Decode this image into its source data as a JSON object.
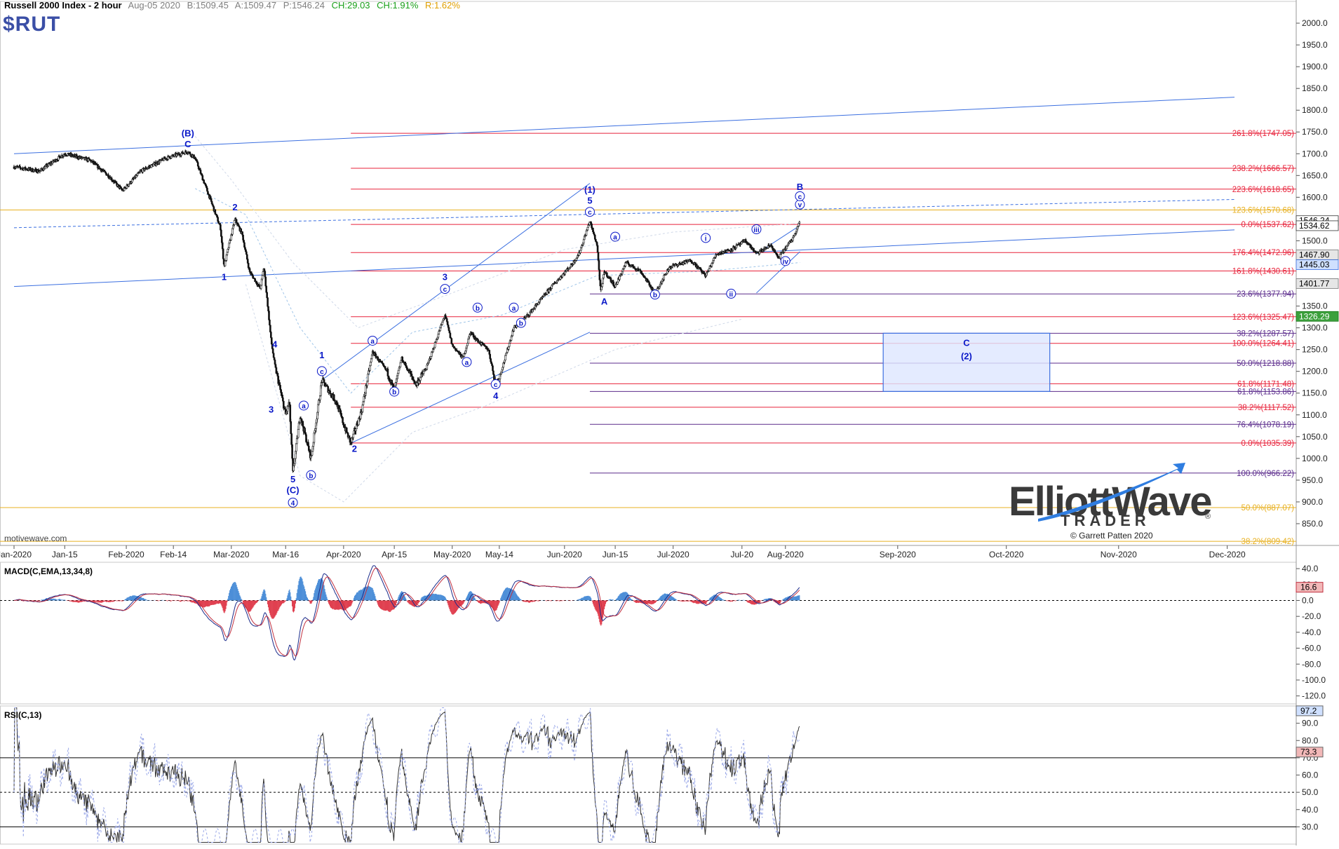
{
  "header": {
    "title": "Russell 2000 Index - 2 hour",
    "date": "Aug-05 2020",
    "bid": "B:1509.45",
    "ask": "A:1509.47",
    "price": "P:1546.24",
    "change": "CH:29.03",
    "change_pct": "CH:1.91%",
    "range": "R:1.62%",
    "symbol": "$RUT"
  },
  "colors": {
    "background": "#ffffff",
    "fib_red": "#e8223a",
    "fib_purple": "#5b2b8c",
    "fib_orange": "#e8b020",
    "trend_blue": "#3b6fe0",
    "wave_label": "#0a18c8",
    "candle": "#111111",
    "macd_up": "#4d8fd8",
    "macd_down": "#e04050",
    "rsi_fill": "#c9a8a8",
    "target_box": "#dde6ff"
  },
  "chart_data": [
    {
      "type": "candlestick",
      "name": "price",
      "ylim": [
        800,
        2050
      ],
      "y_ticks": [
        850,
        900,
        950,
        1000,
        1050,
        1100,
        1150,
        1200,
        1250,
        1300,
        1350,
        1400,
        1450,
        1500,
        1550,
        1600,
        1650,
        1700,
        1750,
        1800,
        1850,
        1900,
        1950,
        2000
      ],
      "x_ticks": [
        "Jan-2020",
        "Jan-15",
        "Feb-2020",
        "Feb-14",
        "Mar-2020",
        "Mar-16",
        "Apr-2020",
        "Apr-15",
        "May-2020",
        "May-14",
        "Jun-2020",
        "Jun-15",
        "Jul-2020",
        "Jul-20",
        "Aug-2020",
        "Sep-2020",
        "Oct-2020",
        "Nov-2020",
        "Dec-2020"
      ],
      "x_tick_dates": [
        "2020-01-01",
        "2020-01-15",
        "2020-02-01",
        "2020-02-14",
        "2020-03-01",
        "2020-03-16",
        "2020-04-01",
        "2020-04-15",
        "2020-05-01",
        "2020-05-14",
        "2020-06-01",
        "2020-06-15",
        "2020-07-01",
        "2020-07-20",
        "2020-08-01",
        "2020-09-01",
        "2020-10-01",
        "2020-11-01",
        "2020-12-01"
      ],
      "price_path": [
        [
          "2020-01-01",
          1670
        ],
        [
          "2020-01-08",
          1660
        ],
        [
          "2020-01-15",
          1700
        ],
        [
          "2020-01-22",
          1685
        ],
        [
          "2020-01-27",
          1650
        ],
        [
          "2020-01-31",
          1615
        ],
        [
          "2020-02-05",
          1660
        ],
        [
          "2020-02-12",
          1690
        ],
        [
          "2020-02-18",
          1705
        ],
        [
          "2020-02-20",
          1690
        ],
        [
          "2020-02-24",
          1600
        ],
        [
          "2020-02-27",
          1530
        ],
        [
          "2020-02-28",
          1440
        ],
        [
          "2020-03-02",
          1550
        ],
        [
          "2020-03-04",
          1515
        ],
        [
          "2020-03-06",
          1430
        ],
        [
          "2020-03-09",
          1390
        ],
        [
          "2020-03-10",
          1440
        ],
        [
          "2020-03-12",
          1270
        ],
        [
          "2020-03-13",
          1215
        ],
        [
          "2020-03-16",
          1100
        ],
        [
          "2020-03-17",
          1130
        ],
        [
          "2020-03-18",
          966
        ],
        [
          "2020-03-20",
          1100
        ],
        [
          "2020-03-23",
          1000
        ],
        [
          "2020-03-24",
          1060
        ],
        [
          "2020-03-26",
          1180
        ],
        [
          "2020-03-30",
          1130
        ],
        [
          "2020-04-01",
          1078
        ],
        [
          "2020-04-03",
          1035
        ],
        [
          "2020-04-06",
          1110
        ],
        [
          "2020-04-09",
          1245
        ],
        [
          "2020-04-13",
          1200
        ],
        [
          "2020-04-15",
          1155
        ],
        [
          "2020-04-17",
          1230
        ],
        [
          "2020-04-21",
          1170
        ],
        [
          "2020-04-24",
          1210
        ],
        [
          "2020-04-29",
          1330
        ],
        [
          "2020-05-01",
          1260
        ],
        [
          "2020-05-04",
          1230
        ],
        [
          "2020-05-06",
          1290
        ],
        [
          "2020-05-08",
          1270
        ],
        [
          "2020-05-11",
          1250
        ],
        [
          "2020-05-13",
          1170
        ],
        [
          "2020-05-14",
          1185
        ],
        [
          "2020-05-18",
          1300
        ],
        [
          "2020-05-22",
          1330
        ],
        [
          "2020-05-26",
          1370
        ],
        [
          "2020-05-29",
          1400
        ],
        [
          "2020-06-03",
          1445
        ],
        [
          "2020-06-05",
          1470
        ],
        [
          "2020-06-08",
          1545
        ],
        [
          "2020-06-10",
          1490
        ],
        [
          "2020-06-11",
          1380
        ],
        [
          "2020-06-12",
          1430
        ],
        [
          "2020-06-15",
          1395
        ],
        [
          "2020-06-18",
          1450
        ],
        [
          "2020-06-22",
          1430
        ],
        [
          "2020-06-26",
          1380
        ],
        [
          "2020-06-30",
          1440
        ],
        [
          "2020-07-06",
          1455
        ],
        [
          "2020-07-10",
          1420
        ],
        [
          "2020-07-13",
          1470
        ],
        [
          "2020-07-17",
          1480
        ],
        [
          "2020-07-21",
          1500
        ],
        [
          "2020-07-24",
          1470
        ],
        [
          "2020-07-28",
          1490
        ],
        [
          "2020-07-30",
          1460
        ],
        [
          "2020-08-03",
          1505
        ],
        [
          "2020-08-05",
          1546
        ]
      ],
      "annotations": [
        "(B)",
        "C",
        "1",
        "2",
        "3",
        "4",
        "5",
        "(C)",
        "4",
        "a",
        "b",
        "c",
        "1",
        "2",
        "a",
        "b",
        "c",
        "3",
        "a",
        "b",
        "c",
        "4",
        "a",
        "b",
        "(1)",
        "5",
        "c",
        "A",
        "a",
        "b",
        "i",
        "ii",
        "iii",
        "iv",
        "v",
        "c",
        "B",
        "C",
        "(2)"
      ],
      "fib_levels": [
        {
          "label": "261.8%(1747.05)",
          "value": 1747.05,
          "color": "red"
        },
        {
          "label": "238.2%(1666.57)",
          "value": 1666.57,
          "color": "red"
        },
        {
          "label": "223.6%(1618.65)",
          "value": 1618.65,
          "color": "red"
        },
        {
          "label": "123.6%(1570.68)",
          "value": 1570.68,
          "color": "orange"
        },
        {
          "label": "0.0%(1537.62)",
          "value": 1537.62,
          "color": "red"
        },
        {
          "label": "176.4%(1472.96)",
          "value": 1472.96,
          "color": "red"
        },
        {
          "label": "161.8%(1430.61)",
          "value": 1430.61,
          "color": "red"
        },
        {
          "label": "23.6%(1377.94)",
          "value": 1377.94,
          "color": "purple"
        },
        {
          "label": "123.6%(1325.47)",
          "value": 1325.47,
          "color": "red"
        },
        {
          "label": "38.2%(1287.57)",
          "value": 1287.57,
          "color": "purple"
        },
        {
          "label": "100.0%(1264.41)",
          "value": 1264.41,
          "color": "red"
        },
        {
          "label": "50.0%(1218.88)",
          "value": 1218.88,
          "color": "purple"
        },
        {
          "label": "61.8%(1171.48)",
          "value": 1171.48,
          "color": "red"
        },
        {
          "label": "61.8%(1153.86)",
          "value": 1153.86,
          "color": "purple"
        },
        {
          "label": "38.2%(1117.52)",
          "value": 1117.52,
          "color": "red"
        },
        {
          "label": "76.4%(1078.19)",
          "value": 1078.19,
          "color": "purple"
        },
        {
          "label": "0.0%(1035.39)",
          "value": 1035.39,
          "color": "red"
        },
        {
          "label": "100.0%(966.22)",
          "value": 966.22,
          "color": "purple"
        },
        {
          "label": "50.0%(887.07)",
          "value": 887.07,
          "color": "orange"
        },
        {
          "label": "38.2%(809.42)",
          "value": 809.42,
          "color": "orange"
        }
      ],
      "price_tags": [
        {
          "label": "1546.24",
          "value": 1546.24,
          "kind": "last"
        },
        {
          "label": "1534.62",
          "value": 1534.62,
          "kind": "last-dark"
        },
        {
          "label": "1467.90",
          "value": 1467.9,
          "kind": "gray"
        },
        {
          "label": "1445.03",
          "value": 1445.03,
          "kind": "blue"
        },
        {
          "label": "1401.77",
          "value": 1401.77,
          "kind": "gray"
        },
        {
          "label": "1326.29",
          "value": 1326.29,
          "kind": "green"
        }
      ],
      "target_box": {
        "label_top": "C",
        "label_bottom": "(2)",
        "from_date": "2020-08-28",
        "to_date": "2020-10-13",
        "high": 1287.57,
        "low": 1153.86
      }
    },
    {
      "type": "line",
      "name": "MACD(C,EMA,13,34,8)",
      "ylim": [
        -130,
        48
      ],
      "y_ticks": [
        40,
        20,
        0,
        -20,
        -40,
        -60,
        -80,
        -100,
        -120
      ],
      "last_value_tag": "16.6",
      "zero_line": 0
    },
    {
      "type": "line",
      "name": "RSI(C,13)",
      "ylim": [
        20,
        100
      ],
      "y_ticks": [
        30,
        40,
        50,
        60,
        70,
        80,
        90
      ],
      "last_value_tags": [
        "97.2",
        "73.3"
      ],
      "reference_lines": [
        70,
        50,
        30
      ]
    }
  ],
  "logo": {
    "wordmark": "ElliottWave",
    "sub": "TRADER",
    "registered": "®",
    "copyright": "© Garrett Patten 2020"
  },
  "watermark": "motivewave.com"
}
